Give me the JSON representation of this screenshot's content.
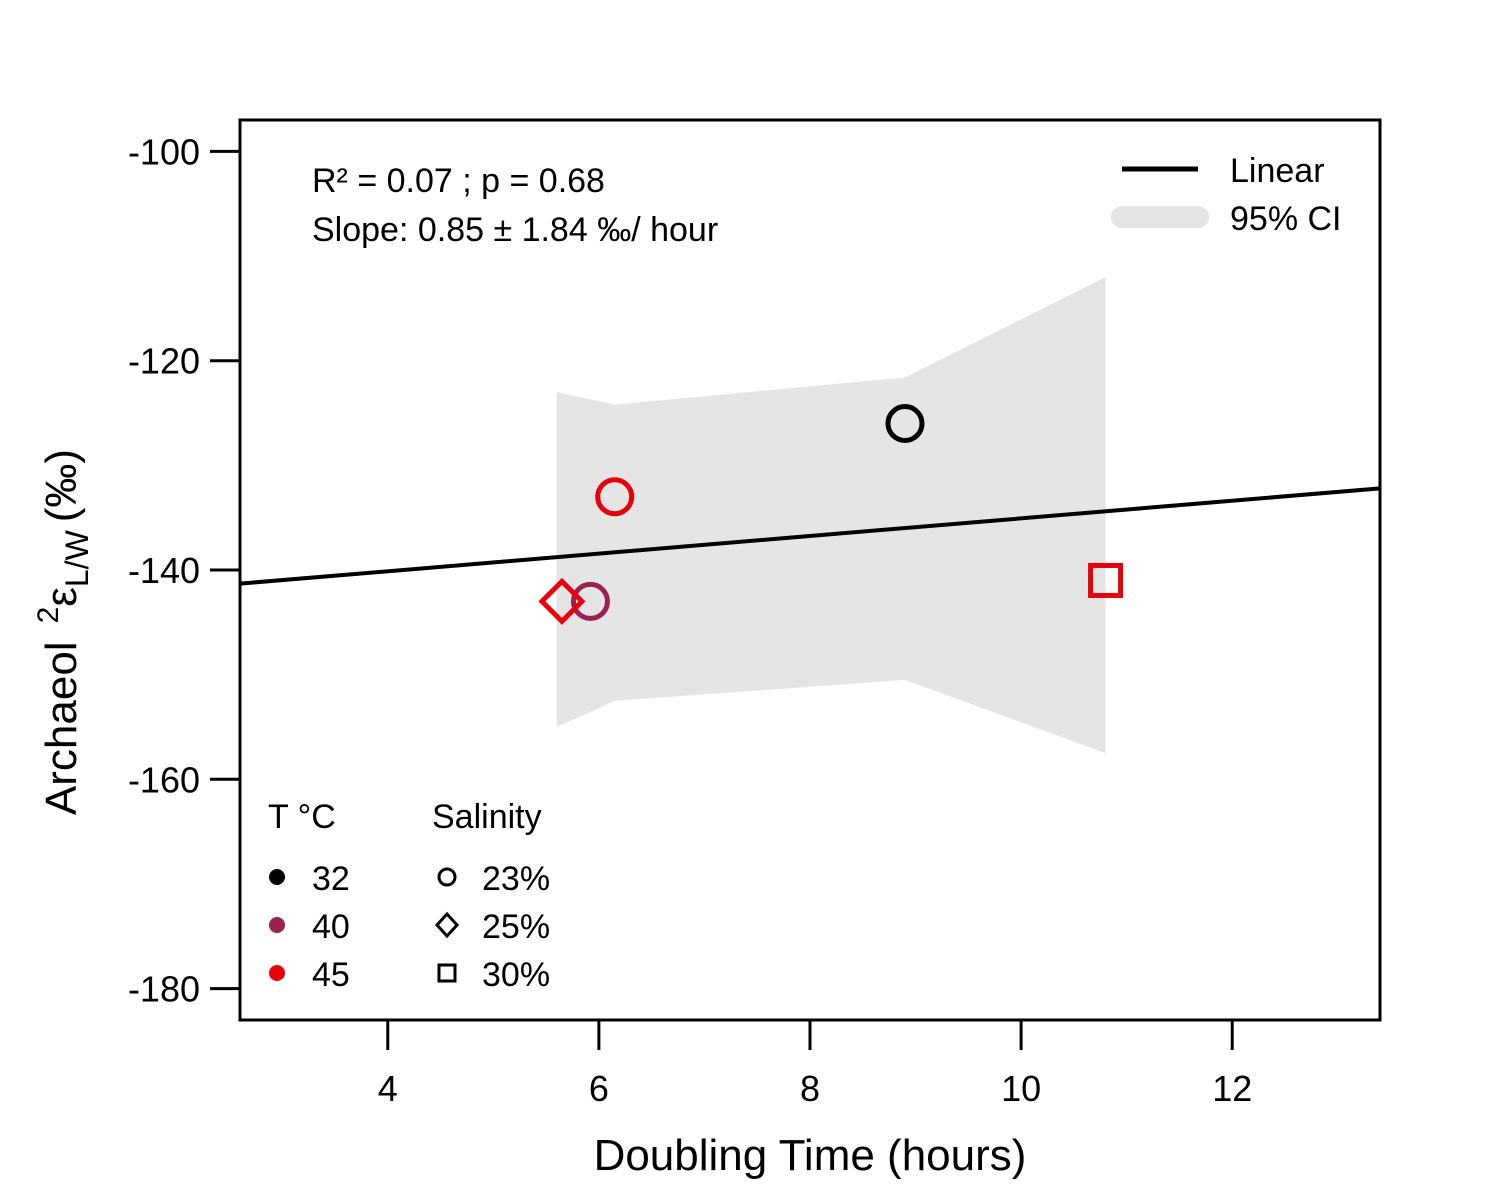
{
  "chart_data": {
    "type": "scatter",
    "xlabel": "Doubling Time (hours)",
    "ylabel": {
      "prefix": "Archaeol",
      "superscript": "2",
      "symbol": "ε",
      "subscript": "L/W",
      "unit": "(‰)"
    },
    "xlim": [
      2.6,
      13.4
    ],
    "ylim": [
      -183,
      -97
    ],
    "xticks": [
      4,
      6,
      8,
      10,
      12
    ],
    "yticks": [
      -100,
      -120,
      -140,
      -160,
      -180
    ],
    "points": [
      {
        "x": 8.9,
        "y": -126,
        "temperature": "32",
        "salinity": "23%"
      },
      {
        "x": 6.15,
        "y": -133,
        "temperature": "45",
        "salinity": "23%"
      },
      {
        "x": 5.92,
        "y": -143,
        "temperature": "40",
        "salinity": "23%"
      },
      {
        "x": 5.65,
        "y": -143,
        "temperature": "45",
        "salinity": "25%"
      },
      {
        "x": 10.8,
        "y": -141,
        "temperature": "45",
        "salinity": "30%"
      }
    ],
    "fit_line": {
      "x": [
        2.6,
        13.4
      ],
      "y": [
        -141.3,
        -132.2
      ]
    },
    "ci_band": {
      "x": [
        5.6,
        6.15,
        8.9,
        10.8
      ],
      "upper": [
        -123,
        -124.2,
        -121.6,
        -112
      ],
      "lower": [
        -155,
        -152.5,
        -150.5,
        -157.5
      ]
    },
    "annotation": {
      "line1": "R² = 0.07 ; p =  0.68",
      "line2": "Slope: 0.85 ±  1.84 ‰/ hour"
    },
    "legend_fit": {
      "linear": "Linear",
      "ci": "95% CI",
      "line_color": "#000000",
      "ci_color": "#e5e5e5"
    },
    "legend_temperature": {
      "title": "T °C",
      "items": [
        {
          "label": "32",
          "color": "#000000"
        },
        {
          "label": "40",
          "color": "#9b2150"
        },
        {
          "label": "45",
          "color": "#e8000b"
        }
      ]
    },
    "legend_salinity": {
      "title": "Salinity",
      "items": [
        {
          "label": "23%",
          "shape": "circle"
        },
        {
          "label": "25%",
          "shape": "diamond"
        },
        {
          "label": "30%",
          "shape": "square"
        }
      ]
    }
  }
}
